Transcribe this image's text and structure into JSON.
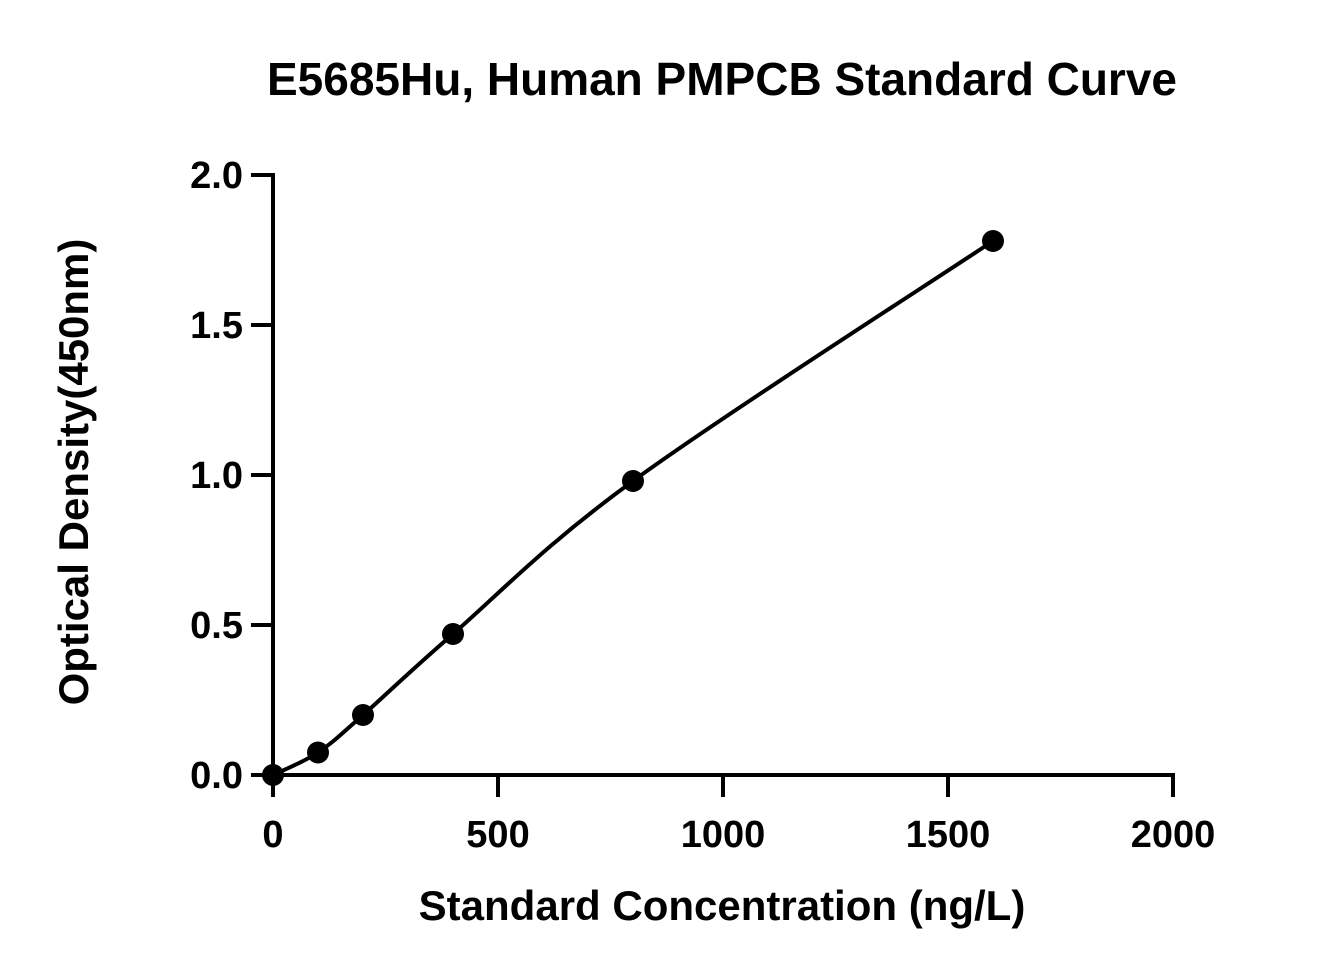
{
  "chart_data": {
    "type": "scatter",
    "title": "E5685Hu, Human PMPCB Standard Curve",
    "xlabel": "Standard Concentration (ng/L)",
    "ylabel": "Optical Density(450nm)",
    "xlim": [
      0,
      2000
    ],
    "ylim": [
      0,
      2.0
    ],
    "xticks": [
      "0",
      "500",
      "1000",
      "1500",
      "2000"
    ],
    "yticks": [
      "0.0",
      "0.5",
      "1.0",
      "1.5",
      "2.0"
    ],
    "grid": false,
    "legend": "none",
    "series": [
      {
        "points": [
          {
            "x": 0,
            "y": 0.0
          },
          {
            "x": 100,
            "y": 0.075
          },
          {
            "x": 200,
            "y": 0.2
          },
          {
            "x": 400,
            "y": 0.47
          },
          {
            "x": 800,
            "y": 0.98
          },
          {
            "x": 1600,
            "y": 1.78
          }
        ],
        "fit": "smooth-curve",
        "color": "#000000"
      }
    ]
  }
}
